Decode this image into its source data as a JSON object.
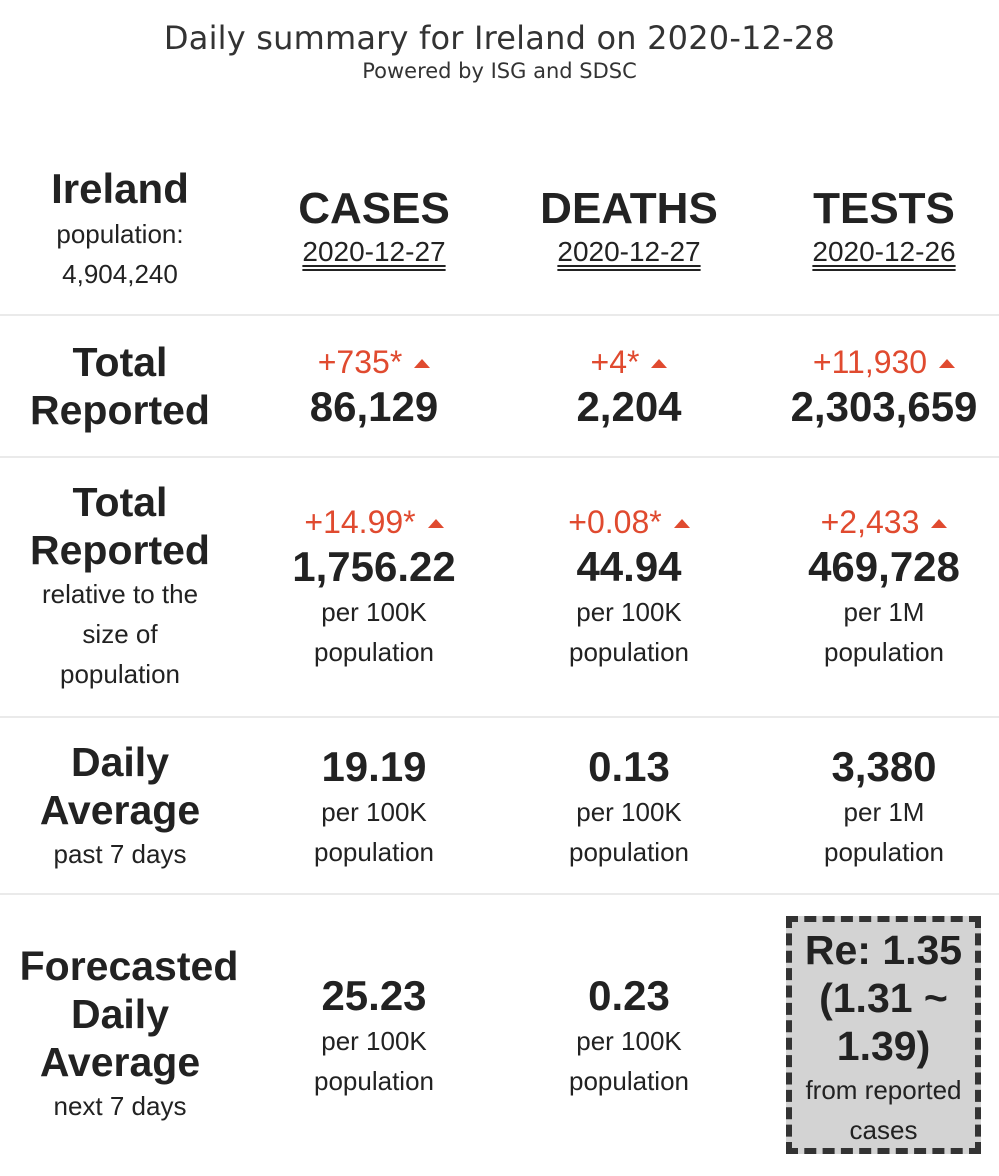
{
  "header": {
    "title": "Daily summary for Ireland on 2020-12-28",
    "subtitle": "Powered by ISG and SDSC"
  },
  "country": {
    "name": "Ireland",
    "population_label": "population:",
    "population_value": "4,904,240"
  },
  "columns": [
    {
      "title": "CASES",
      "date": "2020-12-27"
    },
    {
      "title": "DEATHS",
      "date": "2020-12-27"
    },
    {
      "title": "TESTS",
      "date": "2020-12-26"
    }
  ],
  "rows": {
    "total": {
      "label_line1": "Total",
      "label_line2": "Reported",
      "cells": [
        {
          "delta": "+735*",
          "value": "86,129"
        },
        {
          "delta": "+4*",
          "value": "2,204"
        },
        {
          "delta": "+11,930",
          "value": "2,303,659"
        }
      ]
    },
    "relative": {
      "label_line1": "Total",
      "label_line2": "Reported",
      "sub_line1": "relative to the",
      "sub_line2": "size of",
      "sub_line3": "population",
      "cells": [
        {
          "delta": "+14.99*",
          "value": "1,756.22",
          "unit_line1": "per 100K",
          "unit_line2": "population"
        },
        {
          "delta": "+0.08*",
          "value": "44.94",
          "unit_line1": "per 100K",
          "unit_line2": "population"
        },
        {
          "delta": "+2,433",
          "value": "469,728",
          "unit_line1": "per 1M",
          "unit_line2": "population"
        }
      ]
    },
    "daily_avg": {
      "label_line1": "Daily",
      "label_line2": "Average",
      "sub_line1": "past 7 days",
      "cells": [
        {
          "value": "19.19",
          "unit_line1": "per 100K",
          "unit_line2": "population"
        },
        {
          "value": "0.13",
          "unit_line1": "per 100K",
          "unit_line2": "population"
        },
        {
          "value": "3,380",
          "unit_line1": "per 1M",
          "unit_line2": "population"
        }
      ]
    },
    "forecast": {
      "label_line1": "Forecasted",
      "label_line2": "Daily",
      "label_line3": "Average",
      "sub_line1": "next 7 days",
      "cells": [
        {
          "value": "25.23",
          "unit_line1": "per 100K",
          "unit_line2": "population"
        },
        {
          "value": "0.23",
          "unit_line1": "per 100K",
          "unit_line2": "population"
        }
      ],
      "re_box": {
        "line1": "Re: 1.35",
        "line2": "(1.31 ~",
        "line3": "1.39)",
        "sub_line1": "from reported",
        "sub_line2": "cases"
      }
    }
  },
  "colors": {
    "delta_red": "#e04a2f",
    "text_dark": "#222222",
    "re_box_bg": "#d3d3d3",
    "divider": "#eaeaea"
  },
  "icons": {
    "delta_indicator": "triangle-up-icon"
  }
}
